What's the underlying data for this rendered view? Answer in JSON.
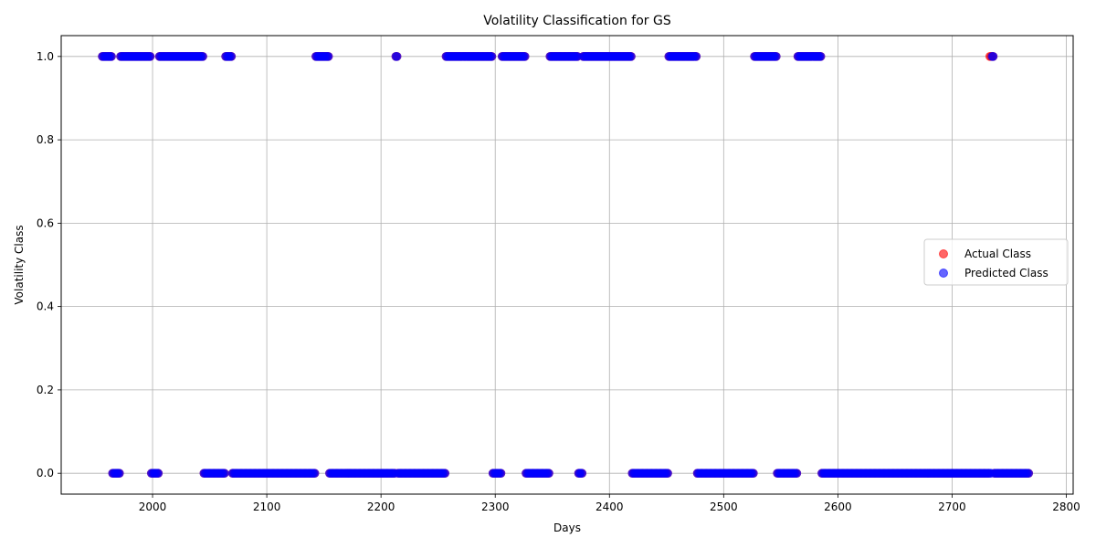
{
  "chart_data": {
    "type": "scatter",
    "title": "Volatility Classification for GS",
    "xlabel": "Days",
    "ylabel": "Volatility Class",
    "xlim": [
      1920,
      2806
    ],
    "ylim": [
      -0.05,
      1.05
    ],
    "x_ticks": [
      2000,
      2100,
      2200,
      2300,
      2400,
      2500,
      2600,
      2700,
      2800
    ],
    "y_ticks": [
      0.0,
      0.2,
      0.4,
      0.6,
      0.8,
      1.0
    ],
    "x_tick_labels": [
      "2000",
      "2100",
      "2200",
      "2300",
      "2400",
      "2500",
      "2600",
      "2700",
      "2800"
    ],
    "y_tick_labels": [
      "0.0",
      "0.2",
      "0.4",
      "0.6",
      "0.8",
      "1.0"
    ],
    "grid": true,
    "legend_position": "center-right",
    "x_start": 1956,
    "series": [
      {
        "name": "Actual Class",
        "color": "#ff0000",
        "alpha": 0.6,
        "segments": [
          {
            "start": 1956,
            "end": 1964,
            "value": 1
          },
          {
            "start": 1965,
            "end": 1971,
            "value": 0
          },
          {
            "start": 1972,
            "end": 1998,
            "value": 1
          },
          {
            "start": 1999,
            "end": 2005,
            "value": 0
          },
          {
            "start": 2006,
            "end": 2044,
            "value": 1
          },
          {
            "start": 2045,
            "end": 2063,
            "value": 0
          },
          {
            "start": 2064,
            "end": 2069,
            "value": 1
          },
          {
            "start": 2070,
            "end": 2142,
            "value": 0
          },
          {
            "start": 2143,
            "end": 2154,
            "value": 1
          },
          {
            "start": 2155,
            "end": 2212,
            "value": 0
          },
          {
            "start": 2213,
            "end": 2214,
            "value": 1
          },
          {
            "start": 2215,
            "end": 2256,
            "value": 0
          },
          {
            "start": 2257,
            "end": 2297,
            "value": 1
          },
          {
            "start": 2298,
            "end": 2305,
            "value": 0
          },
          {
            "start": 2306,
            "end": 2326,
            "value": 1
          },
          {
            "start": 2327,
            "end": 2347,
            "value": 0
          },
          {
            "start": 2348,
            "end": 2372,
            "value": 1
          },
          {
            "start": 2373,
            "end": 2376,
            "value": 0
          },
          {
            "start": 2377,
            "end": 2419,
            "value": 1
          },
          {
            "start": 2420,
            "end": 2451,
            "value": 0
          },
          {
            "start": 2452,
            "end": 2476,
            "value": 1
          },
          {
            "start": 2477,
            "end": 2526,
            "value": 0
          },
          {
            "start": 2527,
            "end": 2546,
            "value": 1
          },
          {
            "start": 2547,
            "end": 2564,
            "value": 0
          },
          {
            "start": 2565,
            "end": 2585,
            "value": 1
          },
          {
            "start": 2586,
            "end": 2732,
            "value": 0
          },
          {
            "start": 2733,
            "end": 2736,
            "value": 1
          },
          {
            "start": 2737,
            "end": 2767,
            "value": 0
          }
        ]
      },
      {
        "name": "Predicted Class",
        "color": "#0000ff",
        "alpha": 0.6,
        "segments": [
          {
            "start": 1956,
            "end": 1964,
            "value": 1
          },
          {
            "start": 1965,
            "end": 1971,
            "value": 0
          },
          {
            "start": 1972,
            "end": 1998,
            "value": 1
          },
          {
            "start": 1999,
            "end": 2005,
            "value": 0
          },
          {
            "start": 2006,
            "end": 2044,
            "value": 1
          },
          {
            "start": 2045,
            "end": 2063,
            "value": 0
          },
          {
            "start": 2064,
            "end": 2069,
            "value": 1
          },
          {
            "start": 2070,
            "end": 2142,
            "value": 0
          },
          {
            "start": 2143,
            "end": 2154,
            "value": 1
          },
          {
            "start": 2155,
            "end": 2212,
            "value": 0
          },
          {
            "start": 2213,
            "end": 2214,
            "value": 1
          },
          {
            "start": 2215,
            "end": 2256,
            "value": 0
          },
          {
            "start": 2257,
            "end": 2297,
            "value": 1
          },
          {
            "start": 2298,
            "end": 2305,
            "value": 0
          },
          {
            "start": 2306,
            "end": 2326,
            "value": 1
          },
          {
            "start": 2327,
            "end": 2347,
            "value": 0
          },
          {
            "start": 2348,
            "end": 2372,
            "value": 1
          },
          {
            "start": 2373,
            "end": 2376,
            "value": 0
          },
          {
            "start": 2377,
            "end": 2419,
            "value": 1
          },
          {
            "start": 2420,
            "end": 2451,
            "value": 0
          },
          {
            "start": 2452,
            "end": 2476,
            "value": 1
          },
          {
            "start": 2477,
            "end": 2526,
            "value": 0
          },
          {
            "start": 2527,
            "end": 2546,
            "value": 1
          },
          {
            "start": 2547,
            "end": 2564,
            "value": 0
          },
          {
            "start": 2565,
            "end": 2585,
            "value": 1
          },
          {
            "start": 2586,
            "end": 2734,
            "value": 0
          },
          {
            "start": 2735,
            "end": 2736,
            "value": 1
          },
          {
            "start": 2737,
            "end": 2767,
            "value": 0
          }
        ]
      }
    ]
  }
}
